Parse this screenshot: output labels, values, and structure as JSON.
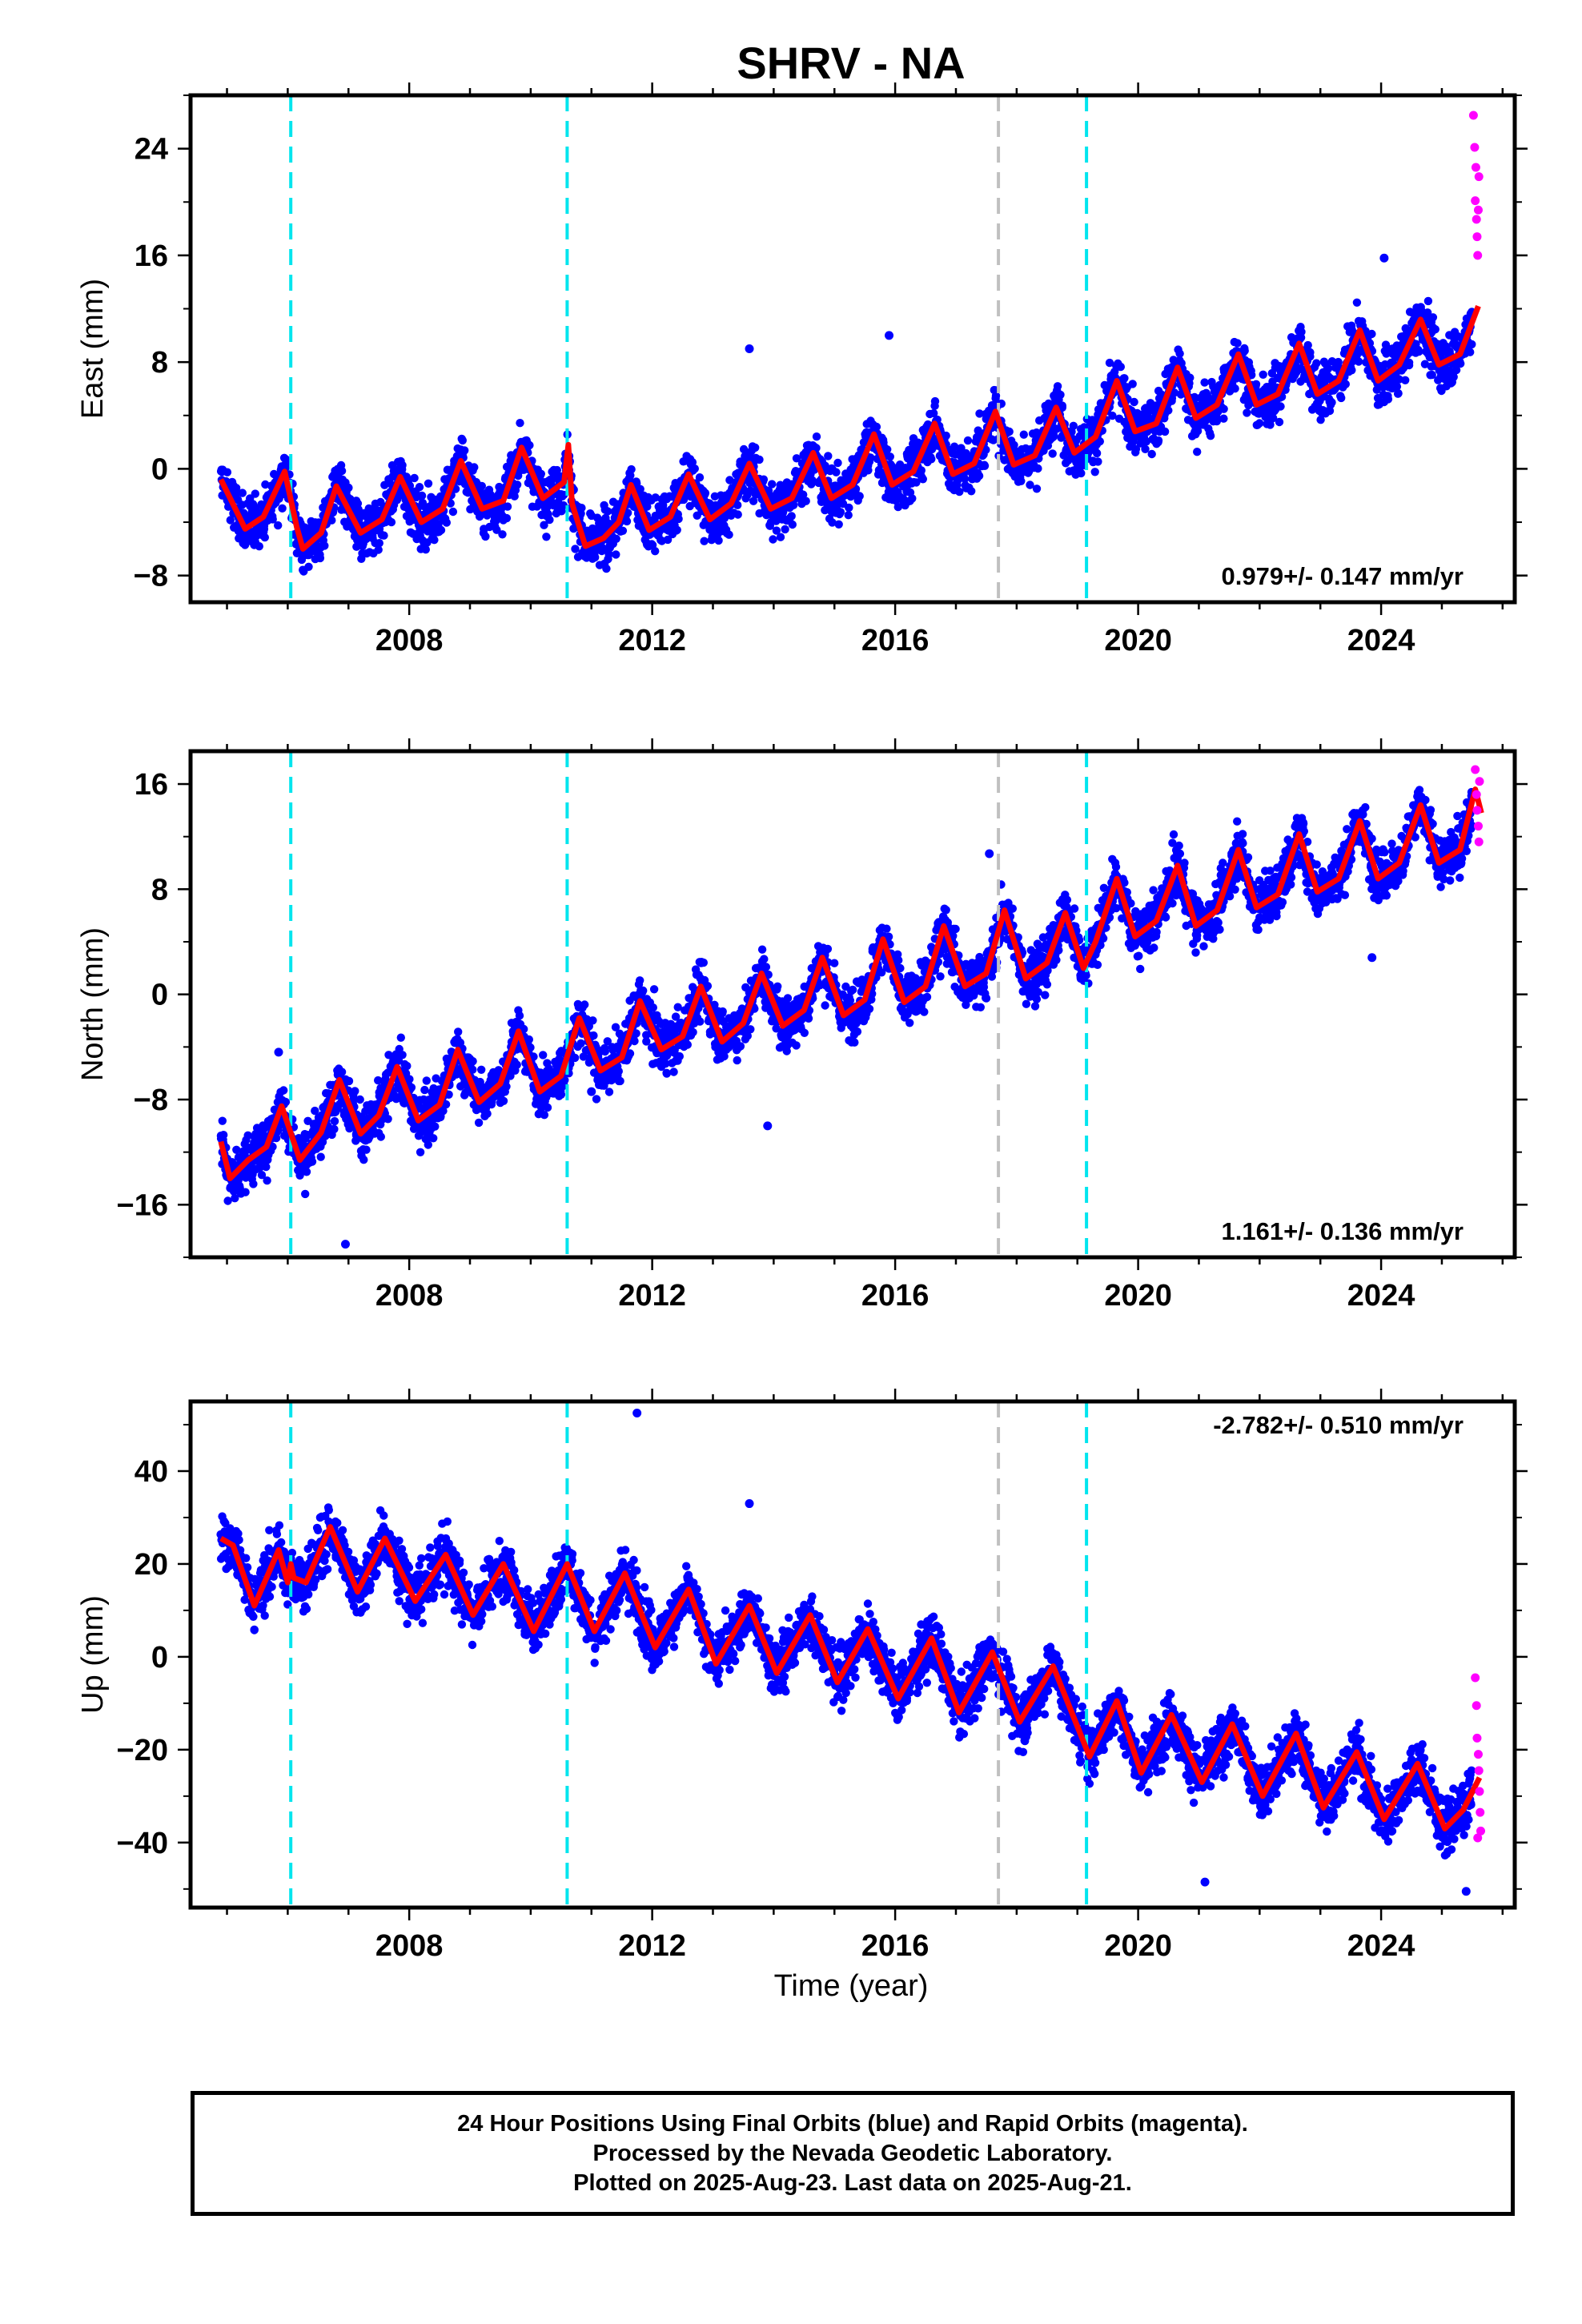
{
  "title": "SHRV - NA",
  "xlabel": "Time (year)",
  "caption": [
    "24 Hour Positions Using Final Orbits (blue) and Rapid Orbits (magenta).",
    "Processed by the Nevada Geodetic Laboratory.",
    "Plotted on 2025-Aug-23. Last data on 2025-Aug-21."
  ],
  "colors": {
    "final": "#0000ff",
    "rapid": "#ff00ff",
    "model": "#ff0000",
    "step_cyan": "#00e5ee",
    "step_gray": "#c0c0c0"
  },
  "chart_data": [
    {
      "type": "scatter",
      "ylabel": "East (mm)",
      "xlim": [
        2004.4,
        2026.2
      ],
      "ylim": [
        -10,
        28
      ],
      "xticks": [
        2008,
        2012,
        2016,
        2020,
        2024
      ],
      "yticks": [
        -8,
        0,
        8,
        16,
        24
      ],
      "rate_label": "0.979+/- 0.147 mm/yr",
      "rate_position": "bottom-right",
      "steps": [
        {
          "x": 2006.05,
          "kind": "cyan"
        },
        {
          "x": 2010.6,
          "kind": "cyan"
        },
        {
          "x": 2017.7,
          "kind": "gray"
        },
        {
          "x": 2019.15,
          "kind": "cyan"
        }
      ],
      "model": [
        [
          2004.9,
          -0.8
        ],
        [
          2005.3,
          -4.5
        ],
        [
          2005.6,
          -3.6
        ],
        [
          2005.95,
          -0.2
        ],
        [
          2006.15,
          -4.4
        ],
        [
          2006.25,
          -6.0
        ],
        [
          2006.55,
          -4.8
        ],
        [
          2006.8,
          -1.3
        ],
        [
          2007.2,
          -4.8
        ],
        [
          2007.55,
          -3.8
        ],
        [
          2007.85,
          -0.6
        ],
        [
          2008.2,
          -4.0
        ],
        [
          2008.55,
          -3.0
        ],
        [
          2008.85,
          0.6
        ],
        [
          2009.2,
          -3.0
        ],
        [
          2009.55,
          -2.4
        ],
        [
          2009.85,
          1.6
        ],
        [
          2010.2,
          -2.2
        ],
        [
          2010.55,
          -1.0
        ],
        [
          2010.62,
          1.8
        ],
        [
          2010.68,
          -2.6
        ],
        [
          2010.9,
          -5.8
        ],
        [
          2011.2,
          -5.2
        ],
        [
          2011.45,
          -4.0
        ],
        [
          2011.65,
          -1.2
        ],
        [
          2011.95,
          -4.6
        ],
        [
          2012.3,
          -3.6
        ],
        [
          2012.6,
          -0.4
        ],
        [
          2012.95,
          -3.8
        ],
        [
          2013.3,
          -2.6
        ],
        [
          2013.6,
          0.4
        ],
        [
          2013.95,
          -3.0
        ],
        [
          2014.3,
          -2.2
        ],
        [
          2014.65,
          1.2
        ],
        [
          2014.95,
          -2.2
        ],
        [
          2015.3,
          -1.2
        ],
        [
          2015.65,
          2.6
        ],
        [
          2015.95,
          -1.2
        ],
        [
          2016.3,
          -0.2
        ],
        [
          2016.65,
          3.4
        ],
        [
          2016.95,
          -0.4
        ],
        [
          2017.3,
          0.4
        ],
        [
          2017.65,
          4.3
        ],
        [
          2017.95,
          0.3
        ],
        [
          2018.3,
          1.0
        ],
        [
          2018.65,
          4.6
        ],
        [
          2018.95,
          1.2
        ],
        [
          2019.3,
          2.4
        ],
        [
          2019.65,
          6.6
        ],
        [
          2019.95,
          2.8
        ],
        [
          2020.3,
          3.4
        ],
        [
          2020.65,
          7.6
        ],
        [
          2020.95,
          3.8
        ],
        [
          2021.3,
          4.8
        ],
        [
          2021.65,
          8.6
        ],
        [
          2021.95,
          4.8
        ],
        [
          2022.3,
          5.6
        ],
        [
          2022.65,
          9.4
        ],
        [
          2022.95,
          5.6
        ],
        [
          2023.3,
          6.6
        ],
        [
          2023.65,
          10.4
        ],
        [
          2023.95,
          6.6
        ],
        [
          2024.3,
          7.8
        ],
        [
          2024.65,
          11.2
        ],
        [
          2024.95,
          7.8
        ],
        [
          2025.3,
          8.6
        ],
        [
          2025.6,
          12.2
        ]
      ],
      "outliers": [
        [
          2013.6,
          9.0
        ],
        [
          2015.9,
          10.0
        ],
        [
          2024.05,
          15.8
        ]
      ],
      "rapid": [
        [
          2025.52,
          26.5
        ],
        [
          2025.54,
          24.1
        ],
        [
          2025.56,
          22.6
        ],
        [
          2025.55,
          20.1
        ],
        [
          2025.57,
          18.7
        ],
        [
          2025.58,
          17.4
        ],
        [
          2025.59,
          16.0
        ],
        [
          2025.6,
          19.4
        ],
        [
          2025.61,
          21.9
        ]
      ]
    },
    {
      "type": "scatter",
      "ylabel": "North (mm)",
      "xlim": [
        2004.4,
        2026.2
      ],
      "ylim": [
        -20,
        18.5
      ],
      "xticks": [
        2008,
        2012,
        2016,
        2020,
        2024
      ],
      "yticks": [
        -16,
        -8,
        0,
        8,
        16
      ],
      "rate_label": "1.161+/- 0.136 mm/yr",
      "rate_position": "bottom-right",
      "steps": [
        {
          "x": 2006.05,
          "kind": "cyan"
        },
        {
          "x": 2010.6,
          "kind": "cyan"
        },
        {
          "x": 2017.7,
          "kind": "gray"
        },
        {
          "x": 2019.15,
          "kind": "cyan"
        }
      ],
      "model": [
        [
          2004.9,
          -11.2
        ],
        [
          2005.05,
          -14.0
        ],
        [
          2005.35,
          -12.6
        ],
        [
          2005.65,
          -11.6
        ],
        [
          2005.9,
          -8.5
        ],
        [
          2006.2,
          -12.6
        ],
        [
          2006.55,
          -10.5
        ],
        [
          2006.85,
          -6.5
        ],
        [
          2007.2,
          -10.6
        ],
        [
          2007.5,
          -9.2
        ],
        [
          2007.8,
          -5.5
        ],
        [
          2008.15,
          -9.6
        ],
        [
          2008.5,
          -8.4
        ],
        [
          2008.8,
          -4.2
        ],
        [
          2009.15,
          -8.2
        ],
        [
          2009.5,
          -6.8
        ],
        [
          2009.8,
          -2.8
        ],
        [
          2010.15,
          -7.4
        ],
        [
          2010.5,
          -6.2
        ],
        [
          2010.8,
          -1.8
        ],
        [
          2011.15,
          -5.8
        ],
        [
          2011.5,
          -4.8
        ],
        [
          2011.8,
          -0.5
        ],
        [
          2012.15,
          -4.2
        ],
        [
          2012.5,
          -3.2
        ],
        [
          2012.8,
          0.6
        ],
        [
          2013.15,
          -3.6
        ],
        [
          2013.5,
          -2.2
        ],
        [
          2013.8,
          1.6
        ],
        [
          2014.15,
          -2.4
        ],
        [
          2014.5,
          -1.2
        ],
        [
          2014.8,
          2.8
        ],
        [
          2015.15,
          -1.6
        ],
        [
          2015.5,
          -0.4
        ],
        [
          2015.8,
          4.2
        ],
        [
          2016.15,
          -0.6
        ],
        [
          2016.5,
          0.6
        ],
        [
          2016.8,
          5.2
        ],
        [
          2017.15,
          0.6
        ],
        [
          2017.5,
          1.6
        ],
        [
          2017.8,
          6.4
        ],
        [
          2018.15,
          1.2
        ],
        [
          2018.5,
          2.4
        ],
        [
          2018.8,
          6.2
        ],
        [
          2019.1,
          2.0
        ],
        [
          2019.3,
          4.0
        ],
        [
          2019.65,
          8.8
        ],
        [
          2019.95,
          4.4
        ],
        [
          2020.3,
          5.6
        ],
        [
          2020.65,
          9.8
        ],
        [
          2020.95,
          5.2
        ],
        [
          2021.3,
          6.4
        ],
        [
          2021.65,
          11.0
        ],
        [
          2021.95,
          6.6
        ],
        [
          2022.3,
          7.6
        ],
        [
          2022.65,
          12.2
        ],
        [
          2022.95,
          7.8
        ],
        [
          2023.3,
          8.8
        ],
        [
          2023.65,
          13.2
        ],
        [
          2023.95,
          8.8
        ],
        [
          2024.3,
          10.0
        ],
        [
          2024.65,
          14.4
        ],
        [
          2024.95,
          10.0
        ],
        [
          2025.3,
          11.0
        ],
        [
          2025.55,
          15.6
        ],
        [
          2025.65,
          13.8
        ]
      ],
      "outliers": [
        [
          2005.85,
          -4.4
        ],
        [
          2006.95,
          -19.0
        ],
        [
          2011.0,
          -7.4
        ],
        [
          2013.9,
          -10.0
        ],
        [
          2017.55,
          10.7
        ],
        [
          2023.85,
          2.8
        ]
      ],
      "rapid": [
        [
          2025.55,
          17.1
        ],
        [
          2025.57,
          15.2
        ],
        [
          2025.58,
          14.0
        ],
        [
          2025.6,
          12.8
        ],
        [
          2025.61,
          11.6
        ],
        [
          2025.62,
          16.2
        ]
      ]
    },
    {
      "type": "scatter",
      "ylabel": "Up (mm)",
      "xlim": [
        2004.4,
        2026.2
      ],
      "ylim": [
        -54,
        55
      ],
      "xticks": [
        2008,
        2012,
        2016,
        2020,
        2024
      ],
      "yticks": [
        -40,
        -20,
        0,
        20,
        40
      ],
      "rate_label": "-2.782+/- 0.510 mm/yr",
      "rate_position": "top-right",
      "steps": [
        {
          "x": 2006.05,
          "kind": "cyan"
        },
        {
          "x": 2010.6,
          "kind": "cyan"
        },
        {
          "x": 2017.7,
          "kind": "gray"
        },
        {
          "x": 2019.15,
          "kind": "cyan"
        }
      ],
      "model": [
        [
          2004.9,
          25.5
        ],
        [
          2005.1,
          24.0
        ],
        [
          2005.45,
          11.0
        ],
        [
          2005.85,
          23.0
        ],
        [
          2006.0,
          16.0
        ],
        [
          2006.05,
          20.0
        ],
        [
          2006.1,
          17.0
        ],
        [
          2006.3,
          16.0
        ],
        [
          2006.7,
          28.0
        ],
        [
          2007.15,
          14.0
        ],
        [
          2007.6,
          25.5
        ],
        [
          2008.1,
          12.0
        ],
        [
          2008.6,
          22.0
        ],
        [
          2009.05,
          9.0
        ],
        [
          2009.55,
          20.0
        ],
        [
          2010.05,
          5.5
        ],
        [
          2010.6,
          20.0
        ],
        [
          2011.05,
          5.5
        ],
        [
          2011.55,
          18.0
        ],
        [
          2012.05,
          2.0
        ],
        [
          2012.6,
          14.5
        ],
        [
          2013.05,
          -1.5
        ],
        [
          2013.6,
          11.0
        ],
        [
          2014.05,
          -3.5
        ],
        [
          2014.6,
          9.0
        ],
        [
          2015.05,
          -5.5
        ],
        [
          2015.55,
          6.0
        ],
        [
          2016.05,
          -9.0
        ],
        [
          2016.6,
          4.0
        ],
        [
          2017.05,
          -12.0
        ],
        [
          2017.6,
          1.0
        ],
        [
          2018.05,
          -14.0
        ],
        [
          2018.6,
          -2.0
        ],
        [
          2019.2,
          -21.5
        ],
        [
          2019.65,
          -9.5
        ],
        [
          2020.05,
          -25.0
        ],
        [
          2020.55,
          -12.5
        ],
        [
          2021.05,
          -27.0
        ],
        [
          2021.55,
          -14.5
        ],
        [
          2022.05,
          -30.0
        ],
        [
          2022.6,
          -16.5
        ],
        [
          2023.05,
          -32.5
        ],
        [
          2023.6,
          -20.5
        ],
        [
          2024.05,
          -35.0
        ],
        [
          2024.6,
          -23.0
        ],
        [
          2025.05,
          -37.0
        ],
        [
          2025.35,
          -33.0
        ],
        [
          2025.62,
          -26.0
        ]
      ],
      "outliers": [
        [
          2011.75,
          52.5
        ],
        [
          2013.6,
          33.0
        ],
        [
          2021.1,
          -48.5
        ],
        [
          2025.4,
          -50.5
        ]
      ],
      "rapid": [
        [
          2025.55,
          -4.5
        ],
        [
          2025.57,
          -10.5
        ],
        [
          2025.58,
          -17.5
        ],
        [
          2025.6,
          -21.0
        ],
        [
          2025.61,
          -24.5
        ],
        [
          2025.62,
          -29.0
        ],
        [
          2025.63,
          -33.5
        ],
        [
          2025.64,
          -37.5
        ],
        [
          2025.59,
          -39.0
        ]
      ]
    }
  ]
}
